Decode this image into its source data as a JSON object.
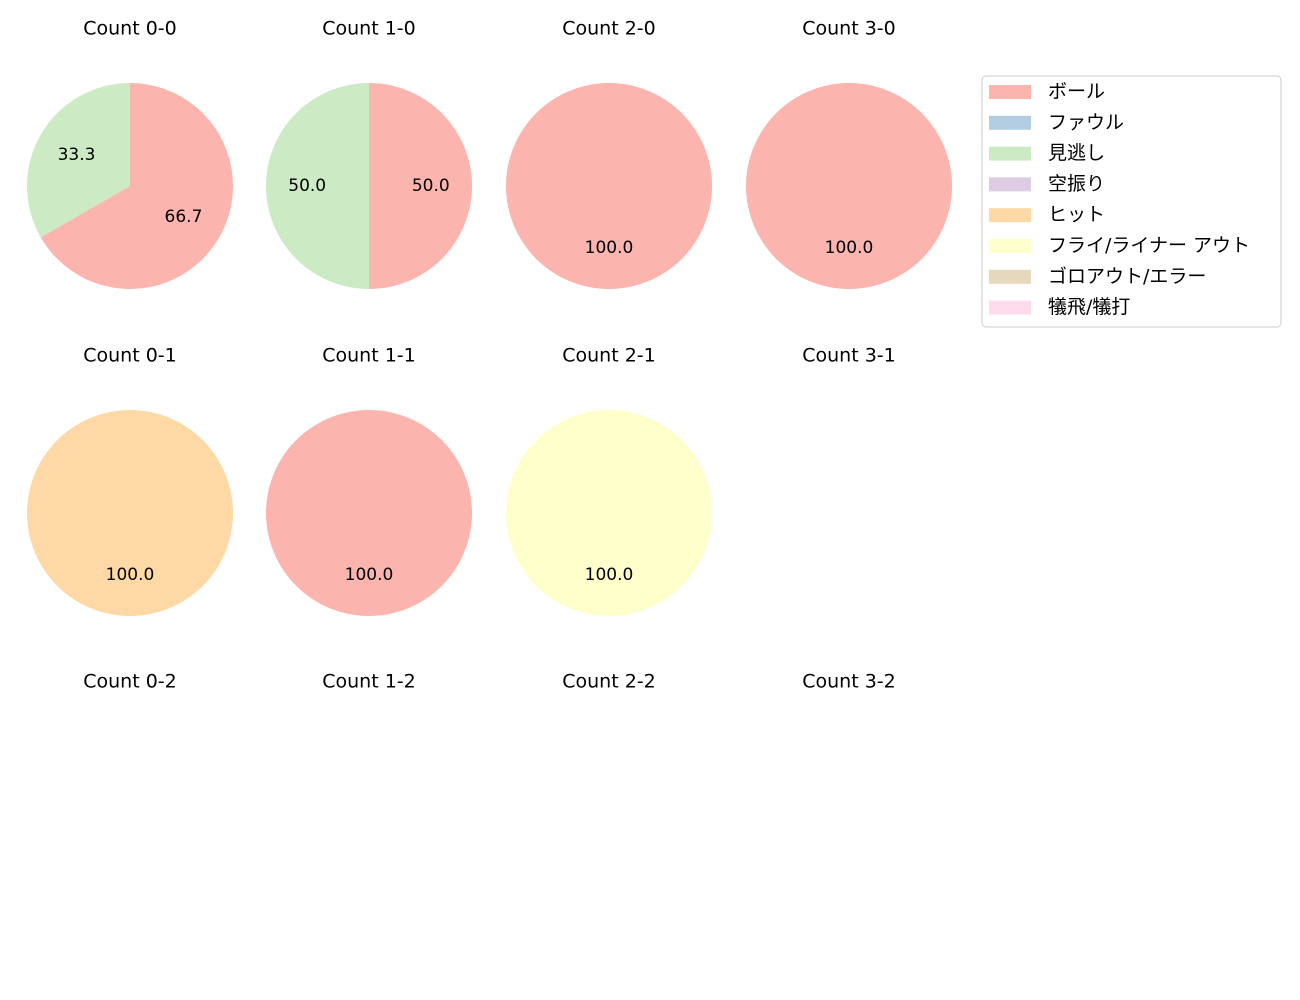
{
  "chart_data": {
    "type": "pie",
    "legend_placement": "top-right",
    "legend": [
      {
        "name": "ボール",
        "color": "#fbb4ae"
      },
      {
        "name": "ファウル",
        "color": "#b3cde3"
      },
      {
        "name": "見逃し",
        "color": "#ccebc5"
      },
      {
        "name": "空振り",
        "color": "#decbe4"
      },
      {
        "name": "ヒット",
        "color": "#fed9a6"
      },
      {
        "name": "フライ/ライナー アウト",
        "color": "#ffffcc"
      },
      {
        "name": "ゴロアウト/エラー",
        "color": "#e5d8bd"
      },
      {
        "name": "犠飛/犠打",
        "color": "#fddaec"
      }
    ],
    "subplots": [
      {
        "title": "Count 0-0",
        "slices": [
          {
            "category": "ボール",
            "value": 66.7,
            "label": "66.7"
          },
          {
            "category": "見逃し",
            "value": 33.3,
            "label": "33.3"
          }
        ]
      },
      {
        "title": "Count 1-0",
        "slices": [
          {
            "category": "ボール",
            "value": 50.0,
            "label": "50.0"
          },
          {
            "category": "見逃し",
            "value": 50.0,
            "label": "50.0"
          }
        ]
      },
      {
        "title": "Count 2-0",
        "slices": [
          {
            "category": "ボール",
            "value": 100.0,
            "label": "100.0"
          }
        ]
      },
      {
        "title": "Count 3-0",
        "slices": [
          {
            "category": "ボール",
            "value": 100.0,
            "label": "100.0"
          }
        ]
      },
      {
        "title": "Count 0-1",
        "slices": [
          {
            "category": "ヒット",
            "value": 100.0,
            "label": "100.0"
          }
        ]
      },
      {
        "title": "Count 1-1",
        "slices": [
          {
            "category": "ボール",
            "value": 100.0,
            "label": "100.0"
          }
        ]
      },
      {
        "title": "Count 2-1",
        "slices": [
          {
            "category": "フライ/ライナー アウト",
            "value": 100.0,
            "label": "100.0"
          }
        ]
      },
      {
        "title": "Count 3-1",
        "slices": []
      },
      {
        "title": "Count 0-2",
        "slices": []
      },
      {
        "title": "Count 1-2",
        "slices": []
      },
      {
        "title": "Count 2-2",
        "slices": []
      },
      {
        "title": "Count 3-2",
        "slices": []
      }
    ]
  }
}
